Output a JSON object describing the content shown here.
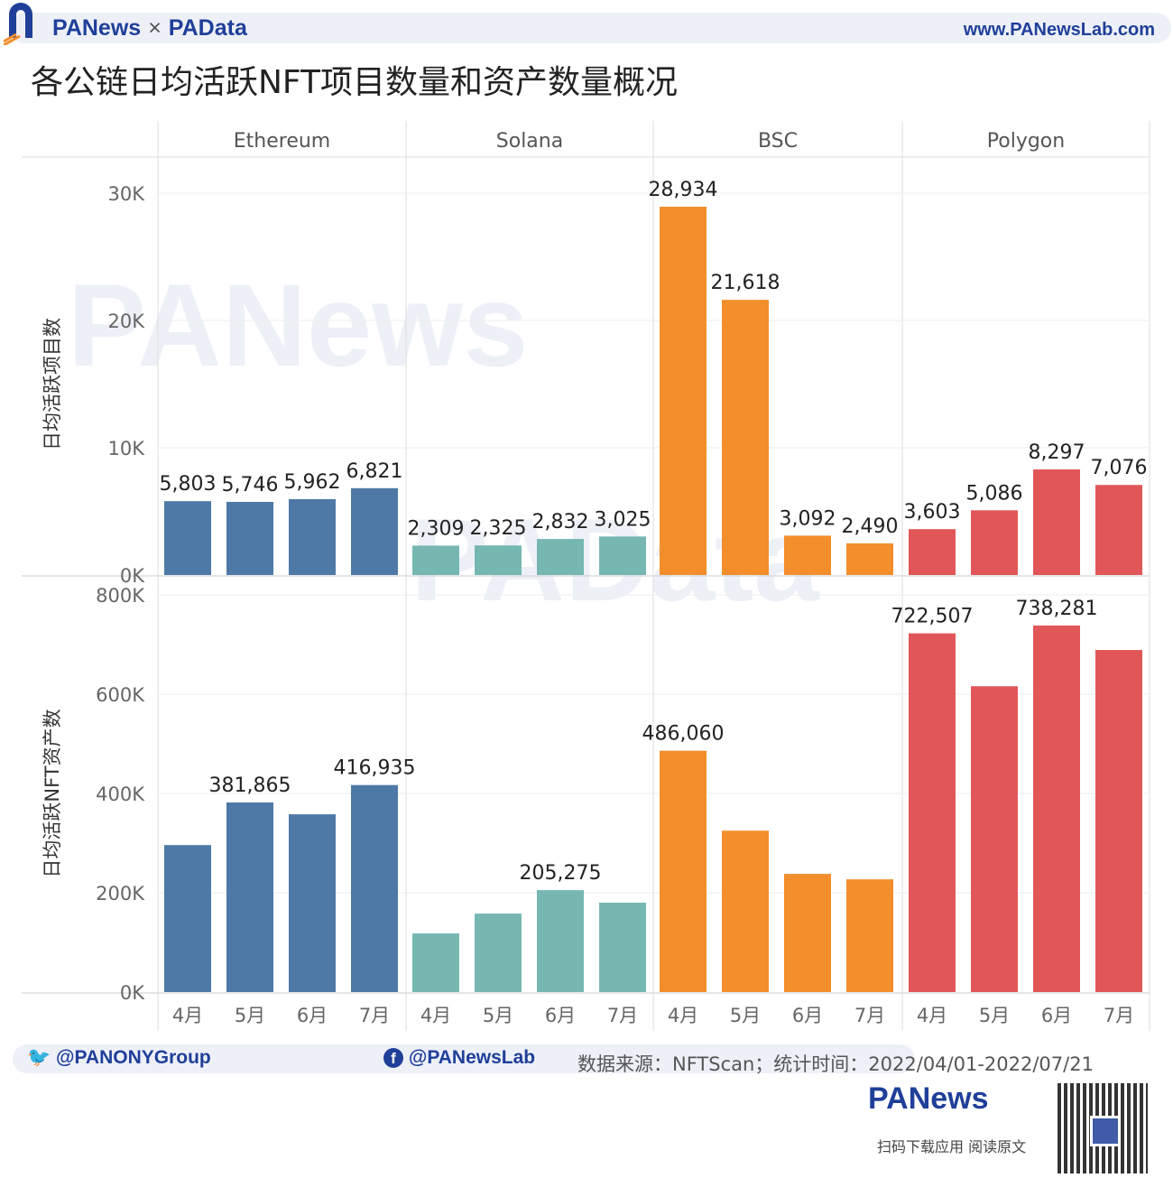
{
  "header": {
    "brand_left": "PANews",
    "brand_sep": "×",
    "brand_right": "PAData",
    "website": "www.PANewsLab.com",
    "title": "各公链日均活跃NFT项目数量和资产数量概况"
  },
  "footer": {
    "twitter": "@PANONYGroup",
    "facebook": "@PANewsLab",
    "source": "数据来源：NFTScan；统计时间：2022/04/01-2022/07/21",
    "logo_text": "PANews",
    "app_text": "扫码下载应用  阅读原文"
  },
  "watermark": [
    "PANews",
    "PAData"
  ],
  "chart_data": {
    "type": "bar",
    "panels": [
      "Ethereum",
      "Solana",
      "BSC",
      "Polygon"
    ],
    "categories": [
      "4月",
      "5月",
      "6月",
      "7月"
    ],
    "colors": {
      "Ethereum": "#4e79a7",
      "Solana": "#76b7b2",
      "BSC": "#f28e2b",
      "Polygon": "#e15759"
    },
    "grid": true,
    "rows": [
      {
        "ylabel": "日均活跃项目数",
        "ylim": [
          0,
          30000
        ],
        "ticks": [
          0,
          10000,
          20000,
          30000
        ],
        "tick_labels": [
          "0K",
          "10K",
          "20K",
          "30K"
        ],
        "values": {
          "Ethereum": [
            5803,
            5746,
            5962,
            6821
          ],
          "Solana": [
            2309,
            2325,
            2832,
            3025
          ],
          "BSC": [
            28934,
            21618,
            3092,
            2490
          ],
          "Polygon": [
            3603,
            5086,
            8297,
            7076
          ]
        },
        "labels": {
          "Ethereum": [
            "5,803",
            "5,746",
            "5,962",
            "6,821"
          ],
          "Solana": [
            "2,309",
            "2,325",
            "2,832",
            "3,025"
          ],
          "BSC": [
            "28,934",
            "21,618",
            "3,092",
            "2,490"
          ],
          "Polygon": [
            "3,603",
            "5,086",
            "8,297",
            "7,076"
          ]
        }
      },
      {
        "ylabel": "日均活跃NFT资产数",
        "ylim": [
          0,
          800000
        ],
        "ticks": [
          0,
          200000,
          400000,
          600000,
          800000
        ],
        "tick_labels": [
          "0K",
          "200K",
          "400K",
          "600K",
          "800K"
        ],
        "values": {
          "Ethereum": [
            296000,
            381865,
            358000,
            416935
          ],
          "Solana": [
            118000,
            158000,
            205275,
            180000
          ],
          "BSC": [
            486060,
            325000,
            238000,
            227000
          ],
          "Polygon": [
            722507,
            616000,
            738281,
            689000
          ]
        },
        "labels": {
          "Ethereum": [
            null,
            "381,865",
            null,
            "416,935"
          ],
          "Solana": [
            null,
            null,
            "205,275",
            null
          ],
          "BSC": [
            "486,060",
            null,
            null,
            null
          ],
          "Polygon": [
            "722,507",
            null,
            "738,281",
            null
          ]
        }
      }
    ]
  }
}
